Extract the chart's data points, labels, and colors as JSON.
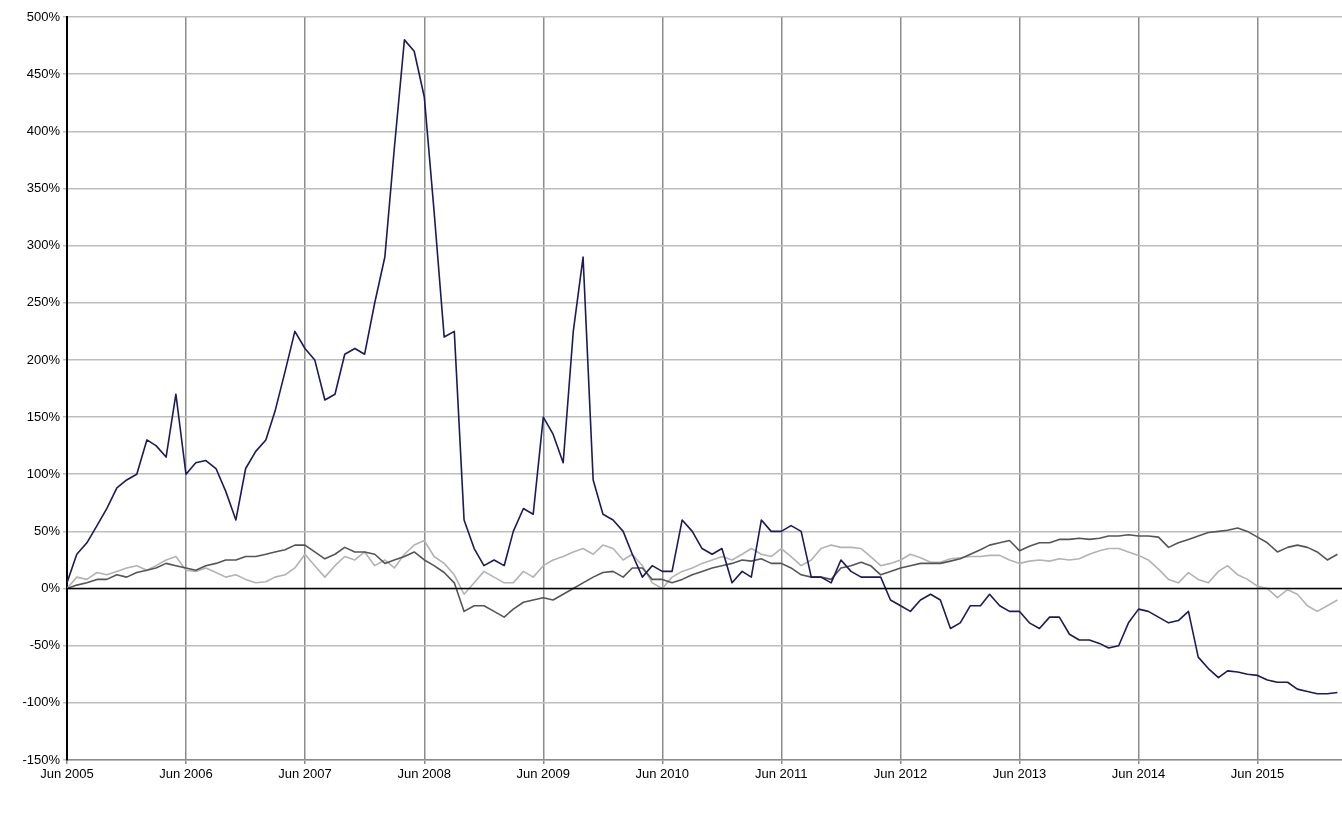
{
  "chart_data": {
    "type": "line",
    "x": [
      "2005-06",
      "2005-07",
      "2005-08",
      "2005-09",
      "2005-10",
      "2005-11",
      "2005-12",
      "2006-01",
      "2006-02",
      "2006-03",
      "2006-04",
      "2006-05",
      "2006-06",
      "2006-07",
      "2006-08",
      "2006-09",
      "2006-10",
      "2006-11",
      "2006-12",
      "2007-01",
      "2007-02",
      "2007-03",
      "2007-04",
      "2007-05",
      "2007-06",
      "2007-07",
      "2007-08",
      "2007-09",
      "2007-10",
      "2007-11",
      "2007-12",
      "2008-01",
      "2008-02",
      "2008-03",
      "2008-04",
      "2008-05",
      "2008-06",
      "2008-07",
      "2008-08",
      "2008-09",
      "2008-10",
      "2008-11",
      "2008-12",
      "2009-01",
      "2009-02",
      "2009-03",
      "2009-04",
      "2009-05",
      "2009-06",
      "2009-07",
      "2009-08",
      "2009-09",
      "2009-10",
      "2009-11",
      "2009-12",
      "2010-01",
      "2010-02",
      "2010-03",
      "2010-04",
      "2010-05",
      "2010-06",
      "2010-07",
      "2010-08",
      "2010-09",
      "2010-10",
      "2010-11",
      "2010-12",
      "2011-01",
      "2011-02",
      "2011-03",
      "2011-04",
      "2011-05",
      "2011-06",
      "2011-07",
      "2011-08",
      "2011-09",
      "2011-10",
      "2011-11",
      "2011-12",
      "2012-01",
      "2012-02",
      "2012-03",
      "2012-04",
      "2012-05",
      "2012-06",
      "2012-07",
      "2012-08",
      "2012-09",
      "2012-10",
      "2012-11",
      "2012-12",
      "2013-01",
      "2013-02",
      "2013-03",
      "2013-04",
      "2013-05",
      "2013-06",
      "2013-07",
      "2013-08",
      "2013-09",
      "2013-10",
      "2013-11",
      "2013-12",
      "2014-01",
      "2014-02",
      "2014-03",
      "2014-04",
      "2014-05",
      "2014-06",
      "2014-07",
      "2014-08",
      "2014-09",
      "2014-10",
      "2014-11",
      "2014-12",
      "2015-01",
      "2015-02",
      "2015-03",
      "2015-04",
      "2015-05",
      "2015-06",
      "2015-07",
      "2015-08",
      "2015-09",
      "2015-10",
      "2015-11",
      "2015-12",
      "2016-01",
      "2016-02"
    ],
    "series": [
      {
        "color": "#1c1a5c",
        "values": [
          5,
          30,
          40,
          55,
          70,
          88,
          95,
          100,
          130,
          125,
          115,
          170,
          100,
          110,
          112,
          105,
          85,
          60,
          105,
          120,
          130,
          155,
          190,
          225,
          210,
          200,
          165,
          170,
          205,
          210,
          205,
          250,
          290,
          385,
          480,
          470,
          430,
          330,
          220,
          225,
          60,
          35,
          20,
          25,
          20,
          50,
          70,
          65,
          150,
          135,
          110,
          225,
          290,
          95,
          65,
          60,
          50,
          30,
          10,
          20,
          15,
          15,
          60,
          50,
          35,
          30,
          35,
          5,
          15,
          10,
          60,
          50,
          50,
          55,
          50,
          10,
          10,
          5,
          25,
          15,
          10,
          10,
          10,
          -10,
          -15,
          -20,
          -10,
          -5,
          -10,
          -35,
          -30,
          -15,
          -15,
          -5,
          -15,
          -20,
          -20,
          -30,
          -35,
          -25,
          -25,
          -40,
          -45,
          -45,
          -48,
          -52,
          -50,
          -30,
          -18,
          -20,
          -25,
          -30,
          -28,
          -20,
          -60,
          -70,
          -78,
          -72,
          -73,
          -75,
          -76,
          -80,
          -82,
          -82,
          -88,
          -90,
          -92,
          -92,
          -91
        ]
      },
      {
        "color": "#555555",
        "values": [
          0,
          3,
          5,
          8,
          8,
          12,
          10,
          14,
          16,
          18,
          22,
          20,
          18,
          16,
          20,
          22,
          25,
          25,
          28,
          28,
          30,
          32,
          34,
          38,
          38,
          32,
          26,
          30,
          36,
          32,
          32,
          30,
          22,
          25,
          28,
          32,
          25,
          20,
          14,
          5,
          -20,
          -15,
          -15,
          -20,
          -25,
          -18,
          -12,
          -10,
          -8,
          -10,
          -5,
          0,
          5,
          10,
          14,
          15,
          10,
          18,
          18,
          8,
          8,
          5,
          8,
          12,
          15,
          18,
          20,
          22,
          25,
          24,
          26,
          22,
          22,
          18,
          12,
          10,
          10,
          8,
          18,
          20,
          23,
          20,
          12,
          15,
          18,
          20,
          22,
          22,
          22,
          24,
          26,
          30,
          34,
          38,
          40,
          42,
          33,
          37,
          40,
          40,
          43,
          43,
          44,
          43,
          44,
          46,
          46,
          47,
          46,
          46,
          45,
          36,
          40,
          43,
          46,
          49,
          50,
          51,
          53,
          50,
          45,
          40,
          32,
          36,
          38,
          36,
          32,
          25,
          30
        ]
      },
      {
        "color": "#b3b3b3",
        "values": [
          0,
          10,
          8,
          14,
          12,
          15,
          18,
          20,
          16,
          20,
          25,
          28,
          16,
          15,
          18,
          14,
          10,
          12,
          8,
          5,
          6,
          10,
          12,
          18,
          30,
          20,
          10,
          20,
          28,
          25,
          32,
          20,
          25,
          18,
          30,
          38,
          42,
          28,
          22,
          12,
          -5,
          5,
          15,
          10,
          5,
          5,
          15,
          10,
          20,
          25,
          28,
          32,
          35,
          30,
          38,
          35,
          25,
          30,
          20,
          5,
          0,
          10,
          15,
          18,
          22,
          25,
          28,
          25,
          30,
          35,
          30,
          28,
          35,
          28,
          20,
          25,
          35,
          38,
          36,
          36,
          35,
          28,
          20,
          22,
          25,
          30,
          27,
          23,
          23,
          26,
          27,
          28,
          28,
          29,
          29,
          25,
          22,
          24,
          25,
          24,
          26,
          25,
          26,
          30,
          33,
          35,
          35,
          32,
          29,
          25,
          17,
          8,
          5,
          14,
          8,
          5,
          15,
          20,
          12,
          8,
          2,
          0,
          -8,
          -1,
          -5,
          -15,
          -20,
          -15,
          -10
        ]
      }
    ],
    "xlim": [
      "2005-06",
      "2016-02-15"
    ],
    "xticks": [
      {
        "value": "2005-06",
        "label": "Jun 2005"
      },
      {
        "value": "2006-06",
        "label": "Jun 2006"
      },
      {
        "value": "2007-06",
        "label": "Jun 2007"
      },
      {
        "value": "2008-06",
        "label": "Jun 2008"
      },
      {
        "value": "2009-06",
        "label": "Jun 2009"
      },
      {
        "value": "2010-06",
        "label": "Jun 2010"
      },
      {
        "value": "2011-06",
        "label": "Jun 2011"
      },
      {
        "value": "2012-06",
        "label": "Jun 2012"
      },
      {
        "value": "2013-06",
        "label": "Jun 2013"
      },
      {
        "value": "2014-06",
        "label": "Jun 2014"
      },
      {
        "value": "2015-06",
        "label": "Jun 2015"
      }
    ],
    "ylim": [
      -150,
      500
    ],
    "yticks": [
      {
        "value": -150,
        "label": "-150%"
      },
      {
        "value": -100,
        "label": "-100%"
      },
      {
        "value": -50,
        "label": "-50%"
      },
      {
        "value": 0,
        "label": "0%"
      },
      {
        "value": 50,
        "label": "50%"
      },
      {
        "value": 100,
        "label": "100%"
      },
      {
        "value": 150,
        "label": "150%"
      },
      {
        "value": 200,
        "label": "200%"
      },
      {
        "value": 250,
        "label": "250%"
      },
      {
        "value": 300,
        "label": "300%"
      },
      {
        "value": 350,
        "label": "350%"
      },
      {
        "value": 400,
        "label": "400%"
      },
      {
        "value": 450,
        "label": "450%"
      },
      {
        "value": 500,
        "label": "500%"
      }
    ],
    "ref_lines": [
      {
        "axis": "y",
        "value": 0,
        "color": "#000000"
      }
    ],
    "grid": true
  }
}
